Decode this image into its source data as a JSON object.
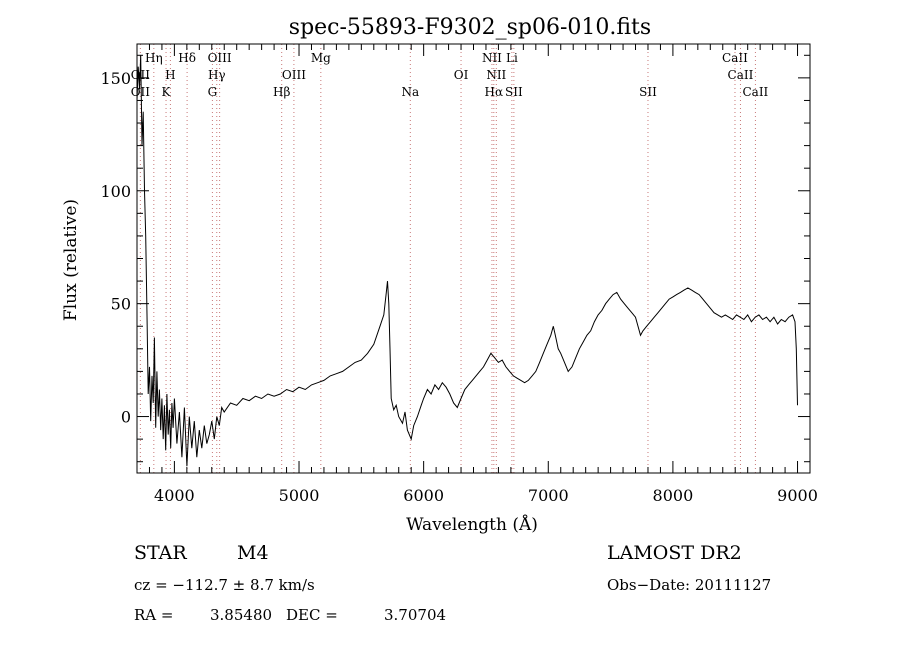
{
  "chart_data": {
    "type": "line",
    "title": "spec-55893-F9302_sp06-010.fits",
    "xlabel": "Wavelength (Å)",
    "ylabel": "Flux (relative)",
    "xlim": [
      3700,
      9100
    ],
    "ylim": [
      -25,
      165
    ],
    "xticks": [
      4000,
      5000,
      6000,
      7000,
      8000,
      9000
    ],
    "yticks": [
      0,
      50,
      100,
      150
    ],
    "grid": false,
    "series": [
      {
        "values": [
          [
            3700,
            140
          ],
          [
            3710,
            155
          ],
          [
            3720,
            145
          ],
          [
            3730,
            160
          ],
          [
            3740,
            120
          ],
          [
            3750,
            135
          ],
          [
            3760,
            100
          ],
          [
            3770,
            80
          ],
          [
            3780,
            45
          ],
          [
            3790,
            10
          ],
          [
            3800,
            22
          ],
          [
            3810,
            -2
          ],
          [
            3820,
            18
          ],
          [
            3830,
            6
          ],
          [
            3840,
            35
          ],
          [
            3850,
            -5
          ],
          [
            3860,
            20
          ],
          [
            3870,
            0
          ],
          [
            3880,
            12
          ],
          [
            3890,
            -6
          ],
          [
            3900,
            8
          ],
          [
            3910,
            -10
          ],
          [
            3920,
            5
          ],
          [
            3930,
            -15
          ],
          [
            3940,
            10
          ],
          [
            3950,
            -8
          ],
          [
            3960,
            3
          ],
          [
            3970,
            -14
          ],
          [
            3980,
            6
          ],
          [
            3990,
            -5
          ],
          [
            4000,
            8
          ],
          [
            4020,
            -12
          ],
          [
            4040,
            2
          ],
          [
            4060,
            -18
          ],
          [
            4080,
            4
          ],
          [
            4100,
            -22
          ],
          [
            4120,
            0
          ],
          [
            4140,
            -14
          ],
          [
            4160,
            -2
          ],
          [
            4180,
            -18
          ],
          [
            4200,
            -6
          ],
          [
            4220,
            -14
          ],
          [
            4240,
            -4
          ],
          [
            4260,
            -12
          ],
          [
            4280,
            -8
          ],
          [
            4300,
            -2
          ],
          [
            4320,
            -10
          ],
          [
            4340,
            0
          ],
          [
            4360,
            -4
          ],
          [
            4380,
            4
          ],
          [
            4400,
            2
          ],
          [
            4450,
            6
          ],
          [
            4500,
            5
          ],
          [
            4550,
            8
          ],
          [
            4600,
            7
          ],
          [
            4650,
            9
          ],
          [
            4700,
            8
          ],
          [
            4750,
            10
          ],
          [
            4800,
            9
          ],
          [
            4850,
            10
          ],
          [
            4900,
            12
          ],
          [
            4950,
            11
          ],
          [
            5000,
            13
          ],
          [
            5050,
            12
          ],
          [
            5100,
            14
          ],
          [
            5150,
            15
          ],
          [
            5200,
            16
          ],
          [
            5250,
            18
          ],
          [
            5300,
            19
          ],
          [
            5350,
            20
          ],
          [
            5400,
            22
          ],
          [
            5450,
            24
          ],
          [
            5500,
            25
          ],
          [
            5550,
            28
          ],
          [
            5600,
            32
          ],
          [
            5650,
            40
          ],
          [
            5680,
            45
          ],
          [
            5700,
            55
          ],
          [
            5710,
            60
          ],
          [
            5720,
            50
          ],
          [
            5730,
            30
          ],
          [
            5740,
            8
          ],
          [
            5760,
            3
          ],
          [
            5780,
            5
          ],
          [
            5800,
            0
          ],
          [
            5830,
            -3
          ],
          [
            5850,
            2
          ],
          [
            5870,
            -6
          ],
          [
            5900,
            -10
          ],
          [
            5920,
            -4
          ],
          [
            5950,
            0
          ],
          [
            5980,
            5
          ],
          [
            6000,
            8
          ],
          [
            6030,
            12
          ],
          [
            6060,
            10
          ],
          [
            6090,
            14
          ],
          [
            6120,
            12
          ],
          [
            6150,
            15
          ],
          [
            6180,
            13
          ],
          [
            6210,
            10
          ],
          [
            6240,
            6
          ],
          [
            6270,
            4
          ],
          [
            6300,
            8
          ],
          [
            6330,
            12
          ],
          [
            6360,
            14
          ],
          [
            6390,
            16
          ],
          [
            6420,
            18
          ],
          [
            6450,
            20
          ],
          [
            6480,
            22
          ],
          [
            6510,
            25
          ],
          [
            6540,
            28
          ],
          [
            6570,
            26
          ],
          [
            6600,
            24
          ],
          [
            6630,
            25
          ],
          [
            6660,
            22
          ],
          [
            6690,
            20
          ],
          [
            6720,
            18
          ],
          [
            6750,
            17
          ],
          [
            6780,
            16
          ],
          [
            6810,
            15
          ],
          [
            6840,
            16
          ],
          [
            6870,
            18
          ],
          [
            6900,
            20
          ],
          [
            6930,
            24
          ],
          [
            6960,
            28
          ],
          [
            6990,
            32
          ],
          [
            7020,
            36
          ],
          [
            7040,
            40
          ],
          [
            7060,
            35
          ],
          [
            7080,
            30
          ],
          [
            7100,
            28
          ],
          [
            7130,
            24
          ],
          [
            7160,
            20
          ],
          [
            7190,
            22
          ],
          [
            7220,
            26
          ],
          [
            7250,
            30
          ],
          [
            7280,
            33
          ],
          [
            7310,
            36
          ],
          [
            7340,
            38
          ],
          [
            7370,
            42
          ],
          [
            7400,
            45
          ],
          [
            7430,
            47
          ],
          [
            7460,
            50
          ],
          [
            7490,
            52
          ],
          [
            7520,
            54
          ],
          [
            7550,
            55
          ],
          [
            7580,
            52
          ],
          [
            7610,
            50
          ],
          [
            7640,
            48
          ],
          [
            7670,
            46
          ],
          [
            7700,
            44
          ],
          [
            7720,
            40
          ],
          [
            7740,
            36
          ],
          [
            7760,
            38
          ],
          [
            7790,
            40
          ],
          [
            7820,
            42
          ],
          [
            7850,
            44
          ],
          [
            7880,
            46
          ],
          [
            7910,
            48
          ],
          [
            7940,
            50
          ],
          [
            7970,
            52
          ],
          [
            8000,
            53
          ],
          [
            8030,
            54
          ],
          [
            8060,
            55
          ],
          [
            8090,
            56
          ],
          [
            8120,
            57
          ],
          [
            8150,
            56
          ],
          [
            8180,
            55
          ],
          [
            8210,
            54
          ],
          [
            8240,
            52
          ],
          [
            8270,
            50
          ],
          [
            8300,
            48
          ],
          [
            8330,
            46
          ],
          [
            8360,
            45
          ],
          [
            8390,
            44
          ],
          [
            8420,
            45
          ],
          [
            8450,
            44
          ],
          [
            8480,
            43
          ],
          [
            8510,
            45
          ],
          [
            8540,
            44
          ],
          [
            8570,
            43
          ],
          [
            8600,
            45
          ],
          [
            8630,
            42
          ],
          [
            8660,
            44
          ],
          [
            8690,
            45
          ],
          [
            8720,
            43
          ],
          [
            8750,
            44
          ],
          [
            8780,
            42
          ],
          [
            8810,
            44
          ],
          [
            8840,
            41
          ],
          [
            8870,
            43
          ],
          [
            8900,
            42
          ],
          [
            8930,
            44
          ],
          [
            8960,
            45
          ],
          [
            8980,
            42
          ],
          [
            8990,
            30
          ],
          [
            9000,
            5
          ]
        ]
      }
    ],
    "line_markers": [
      {
        "label": "OII",
        "x": 3727,
        "row": 2
      },
      {
        "label": "OII",
        "x": 3727,
        "row": 3
      },
      {
        "label": "Hη",
        "x": 3835,
        "row": 1
      },
      {
        "label": "H",
        "x": 3968,
        "row": 2
      },
      {
        "label": "K",
        "x": 3933,
        "row": 3
      },
      {
        "label": "Hδ",
        "x": 4102,
        "row": 1
      },
      {
        "label": "OIII",
        "x": 4363,
        "row": 1
      },
      {
        "label": "Hγ",
        "x": 4340,
        "row": 2
      },
      {
        "label": "G",
        "x": 4305,
        "row": 3
      },
      {
        "label": "Hβ",
        "x": 4861,
        "row": 3
      },
      {
        "label": "OIII",
        "x": 4959,
        "row": 2
      },
      {
        "label": "Mg",
        "x": 5175,
        "row": 1
      },
      {
        "label": "Na",
        "x": 5893,
        "row": 3
      },
      {
        "label": "OI",
        "x": 6300,
        "row": 2
      },
      {
        "label": "NII",
        "x": 6548,
        "row": 1
      },
      {
        "label": "Li",
        "x": 6708,
        "row": 1
      },
      {
        "label": "NII",
        "x": 6583,
        "row": 2
      },
      {
        "label": "Hα",
        "x": 6563,
        "row": 3
      },
      {
        "label": "SII",
        "x": 6724,
        "row": 3
      },
      {
        "label": "SII",
        "x": 7800,
        "row": 3
      },
      {
        "label": "CaII",
        "x": 8498,
        "row": 1
      },
      {
        "label": "CaII",
        "x": 8542,
        "row": 2
      },
      {
        "label": "CaII",
        "x": 8662,
        "row": 3
      }
    ]
  },
  "footer": {
    "object_type": "STAR",
    "subclass": "M4",
    "survey": "LAMOST DR2",
    "cz": "cz = −112.7 ± 8.7 km/s",
    "obs_date": "Obs−Date: 20111127",
    "ra_label": "RA =",
    "ra_value": "3.85480",
    "dec_label": "DEC =",
    "dec_value": "3.70704"
  }
}
